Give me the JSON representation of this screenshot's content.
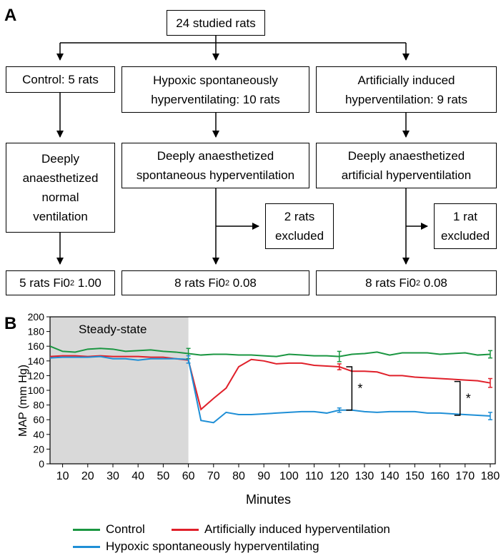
{
  "panel_a": {
    "label": "A",
    "top": "24 studied rats",
    "groups": [
      {
        "name": "Control: 5 rats",
        "procedure": "Deeply\nanaesthetized\nnormal\nventilation",
        "excluded": "",
        "final_prefix": "5 rats Fi0",
        "final_sub": "2",
        "final_suffix": " 1.00"
      },
      {
        "name": "Hypoxic spontaneously\nhyperventilating: 10 rats",
        "procedure": "Deeply anaesthetized\nspontaneous hyperventilation",
        "excluded": "2 rats\nexcluded",
        "final_prefix": "8 rats Fi0",
        "final_sub": "2",
        "final_suffix": " 0.08"
      },
      {
        "name": "Artificially induced\nhyperventilation: 9 rats",
        "procedure": "Deeply anaesthetized\nartificial hyperventilation",
        "excluded": "1 rat\nexcluded",
        "final_prefix": "8 rats Fi0",
        "final_sub": "2",
        "final_suffix": " 0.08"
      }
    ]
  },
  "panel_b": {
    "label": "B",
    "shaded_label": "Steady-state",
    "significance_marker": "*"
  },
  "colors": {
    "control": "#1a9641",
    "artificial": "#e0202a",
    "hypoxic": "#1f8fd6",
    "shade": "#d9d9d9"
  },
  "chart_data": {
    "type": "line",
    "xlabel": "Minutes",
    "ylabel": "MAP (mm Hg)",
    "xlim": [
      5,
      182
    ],
    "ylim": [
      0,
      200
    ],
    "xticks": [
      10,
      20,
      30,
      40,
      50,
      60,
      70,
      80,
      90,
      100,
      110,
      120,
      130,
      140,
      150,
      160,
      170,
      180
    ],
    "yticks": [
      0,
      20,
      40,
      60,
      80,
      100,
      120,
      140,
      160,
      180,
      200
    ],
    "shaded_region": [
      5,
      60
    ],
    "series": [
      {
        "name": "Control",
        "color": "#1a9641",
        "x": [
          5,
          10,
          15,
          20,
          25,
          30,
          35,
          40,
          45,
          50,
          55,
          60,
          65,
          70,
          75,
          80,
          85,
          90,
          95,
          100,
          105,
          110,
          115,
          120,
          125,
          130,
          135,
          140,
          145,
          150,
          155,
          160,
          165,
          170,
          175,
          180
        ],
        "y": [
          160,
          153,
          152,
          156,
          157,
          156,
          153,
          154,
          155,
          153,
          152,
          150,
          148,
          149,
          149,
          148,
          148,
          147,
          146,
          149,
          148,
          147,
          147,
          146,
          149,
          150,
          152,
          148,
          151,
          151,
          151,
          149,
          150,
          151,
          148,
          149
        ]
      },
      {
        "name": "Artificially induced hyperventilation",
        "color": "#e0202a",
        "x": [
          5,
          10,
          15,
          20,
          25,
          30,
          35,
          40,
          45,
          50,
          55,
          60,
          65,
          70,
          75,
          80,
          85,
          90,
          95,
          100,
          105,
          110,
          115,
          120,
          125,
          130,
          135,
          140,
          145,
          150,
          155,
          160,
          165,
          170,
          175,
          180
        ],
        "y": [
          146,
          147,
          147,
          146,
          147,
          146,
          146,
          146,
          145,
          145,
          143,
          141,
          74,
          89,
          103,
          132,
          142,
          140,
          136,
          137,
          137,
          134,
          133,
          132,
          126,
          126,
          125,
          120,
          120,
          118,
          117,
          116,
          115,
          114,
          113,
          110
        ]
      },
      {
        "name": "Hypoxic spontaneously hyperventilating",
        "color": "#1f8fd6",
        "x": [
          5,
          10,
          15,
          20,
          25,
          30,
          35,
          40,
          45,
          50,
          55,
          60,
          65,
          70,
          75,
          80,
          85,
          90,
          95,
          100,
          105,
          110,
          115,
          120,
          125,
          130,
          135,
          140,
          145,
          150,
          155,
          160,
          165,
          170,
          175,
          180
        ],
        "y": [
          144,
          145,
          145,
          145,
          146,
          143,
          143,
          141,
          143,
          143,
          143,
          142,
          59,
          56,
          70,
          67,
          67,
          68,
          69,
          70,
          71,
          71,
          69,
          73,
          73,
          71,
          70,
          71,
          71,
          71,
          69,
          69,
          68,
          67,
          66,
          65
        ]
      }
    ],
    "error_bars": [
      {
        "series": 0,
        "x": 60,
        "y": 150,
        "err": 7
      },
      {
        "series": 0,
        "x": 120,
        "y": 146,
        "err": 7
      },
      {
        "series": 0,
        "x": 180,
        "y": 149,
        "err": 5
      },
      {
        "series": 1,
        "x": 120,
        "y": 132,
        "err": 4
      },
      {
        "series": 1,
        "x": 180,
        "y": 110,
        "err": 6
      },
      {
        "series": 2,
        "x": 60,
        "y": 142,
        "err": 5
      },
      {
        "series": 2,
        "x": 120,
        "y": 73,
        "err": 3
      },
      {
        "series": 2,
        "x": 180,
        "y": 65,
        "err": 5
      }
    ],
    "significance": [
      {
        "x": 125,
        "y_low": 73,
        "y_high": 132,
        "label": "*"
      },
      {
        "x": 168,
        "y_low": 66,
        "y_high": 112,
        "label": "*"
      }
    ]
  }
}
